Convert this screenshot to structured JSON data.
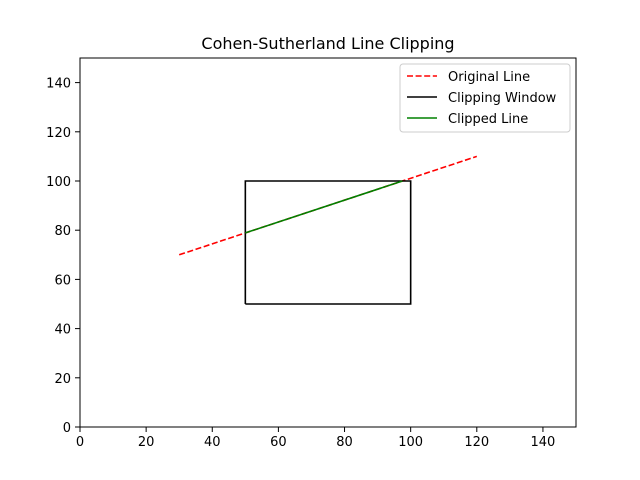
{
  "chart_data": {
    "type": "line",
    "title": "Cohen-Sutherland Line Clipping",
    "xlabel": "",
    "ylabel": "",
    "xlim": [
      0,
      150
    ],
    "ylim": [
      0,
      150
    ],
    "xticks": [
      0,
      20,
      40,
      60,
      80,
      100,
      120,
      140
    ],
    "yticks": [
      0,
      20,
      40,
      60,
      80,
      100,
      120,
      140
    ],
    "grid": false,
    "legend_position": "top-right",
    "series": [
      {
        "name": "Original Line",
        "color": "#ff0000",
        "style": "dashed",
        "points": [
          [
            30,
            70
          ],
          [
            120,
            110
          ]
        ]
      },
      {
        "name": "Clipping Window",
        "color": "#000000",
        "style": "solid",
        "points": [
          [
            50,
            50
          ],
          [
            100,
            50
          ],
          [
            100,
            100
          ],
          [
            50,
            100
          ],
          [
            50,
            50
          ]
        ]
      },
      {
        "name": "Clipped Line",
        "color": "#008000",
        "style": "solid",
        "points": [
          [
            50,
            78.9
          ],
          [
            97.5,
            100
          ]
        ]
      }
    ]
  }
}
